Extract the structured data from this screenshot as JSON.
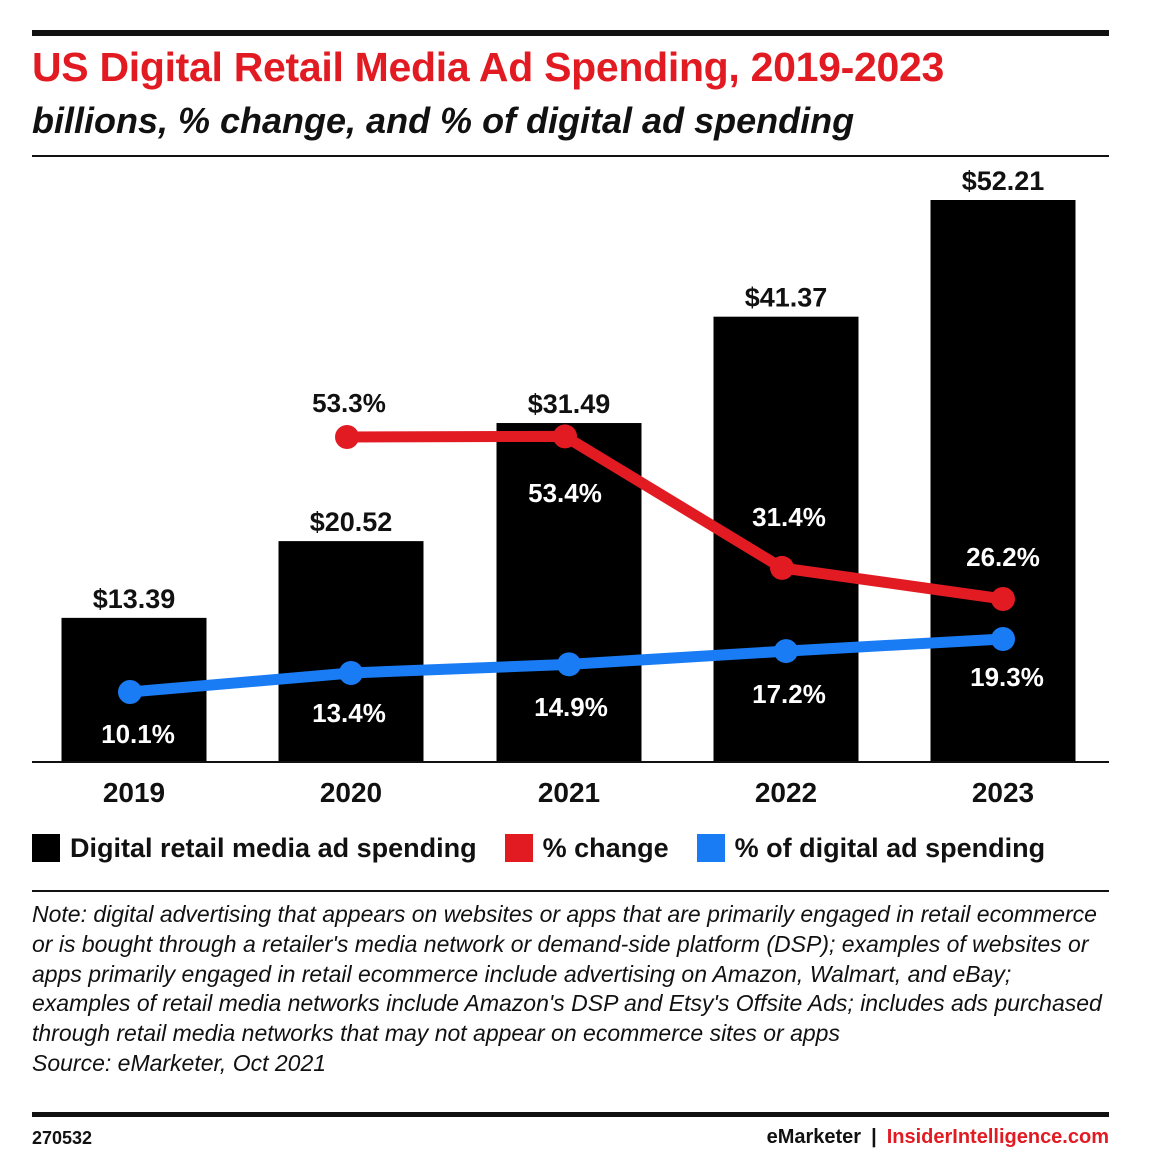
{
  "header": {
    "title": "US Digital Retail Media Ad Spending, 2019-2023",
    "subtitle": "billions, % change, and % of digital ad spending"
  },
  "colors": {
    "accent": "#e21b23",
    "bars": "#000000",
    "change_line": "#e21b23",
    "share_line": "#1a7cf5"
  },
  "chart_data": {
    "type": "bar",
    "categories": [
      "2019",
      "2020",
      "2021",
      "2022",
      "2023"
    ],
    "series": [
      {
        "name": "Digital retail media ad spending",
        "type": "bar",
        "values": [
          13.39,
          20.52,
          31.49,
          41.37,
          52.21
        ],
        "labels": [
          "$13.39",
          "$20.52",
          "$31.49",
          "$41.37",
          "$52.21"
        ]
      },
      {
        "name": "% change",
        "type": "line",
        "values": [
          null,
          53.3,
          53.4,
          31.4,
          26.2
        ],
        "labels": [
          null,
          "53.3%",
          "53.4%",
          "31.4%",
          "26.2%"
        ]
      },
      {
        "name": "% of digital ad spending",
        "type": "line",
        "values": [
          10.1,
          13.4,
          14.9,
          17.2,
          19.3
        ],
        "labels": [
          "10.1%",
          "13.4%",
          "14.9%",
          "17.2%",
          "19.3%"
        ]
      }
    ],
    "ylim": [
      0,
      55
    ],
    "grid": false,
    "legend": "bottom"
  },
  "legend": {
    "items": [
      {
        "label": "Digital retail media ad spending",
        "color": "#000000"
      },
      {
        "label": "% change",
        "color": "#e21b23"
      },
      {
        "label": "% of digital ad spending",
        "color": "#1a7cf5"
      }
    ]
  },
  "note": {
    "text": "Note: digital advertising that appears on websites or apps that are primarily engaged in retail ecommerce or is bought through a retailer's media network or demand-side platform (DSP); examples of websites or apps primarily engaged in retail ecommerce include advertising on Amazon, Walmart, and eBay; examples of retail media networks include Amazon's DSP and Etsy's Offsite Ads; includes ads purchased through retail media networks that may not appear on ecommerce sites or apps",
    "source": "Source: eMarketer, Oct 2021"
  },
  "footer": {
    "chart_id": "270532",
    "brand": "eMarketer",
    "separator": "|",
    "site": "InsiderIntelligence.com"
  }
}
